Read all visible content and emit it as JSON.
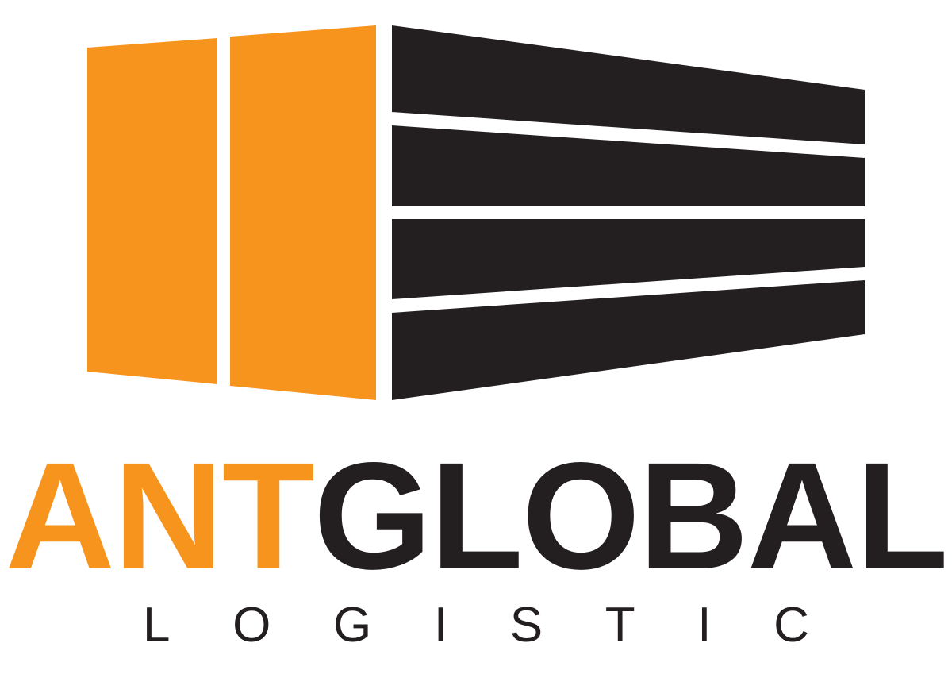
{
  "logo": {
    "brand_first": "ANT",
    "brand_second": "GLOBAL",
    "tagline": "LOGISTIC",
    "icon": "shipping-container-icon"
  },
  "colors": {
    "orange": "#f7941d",
    "dark": "#231f20",
    "background": "#ffffff"
  }
}
